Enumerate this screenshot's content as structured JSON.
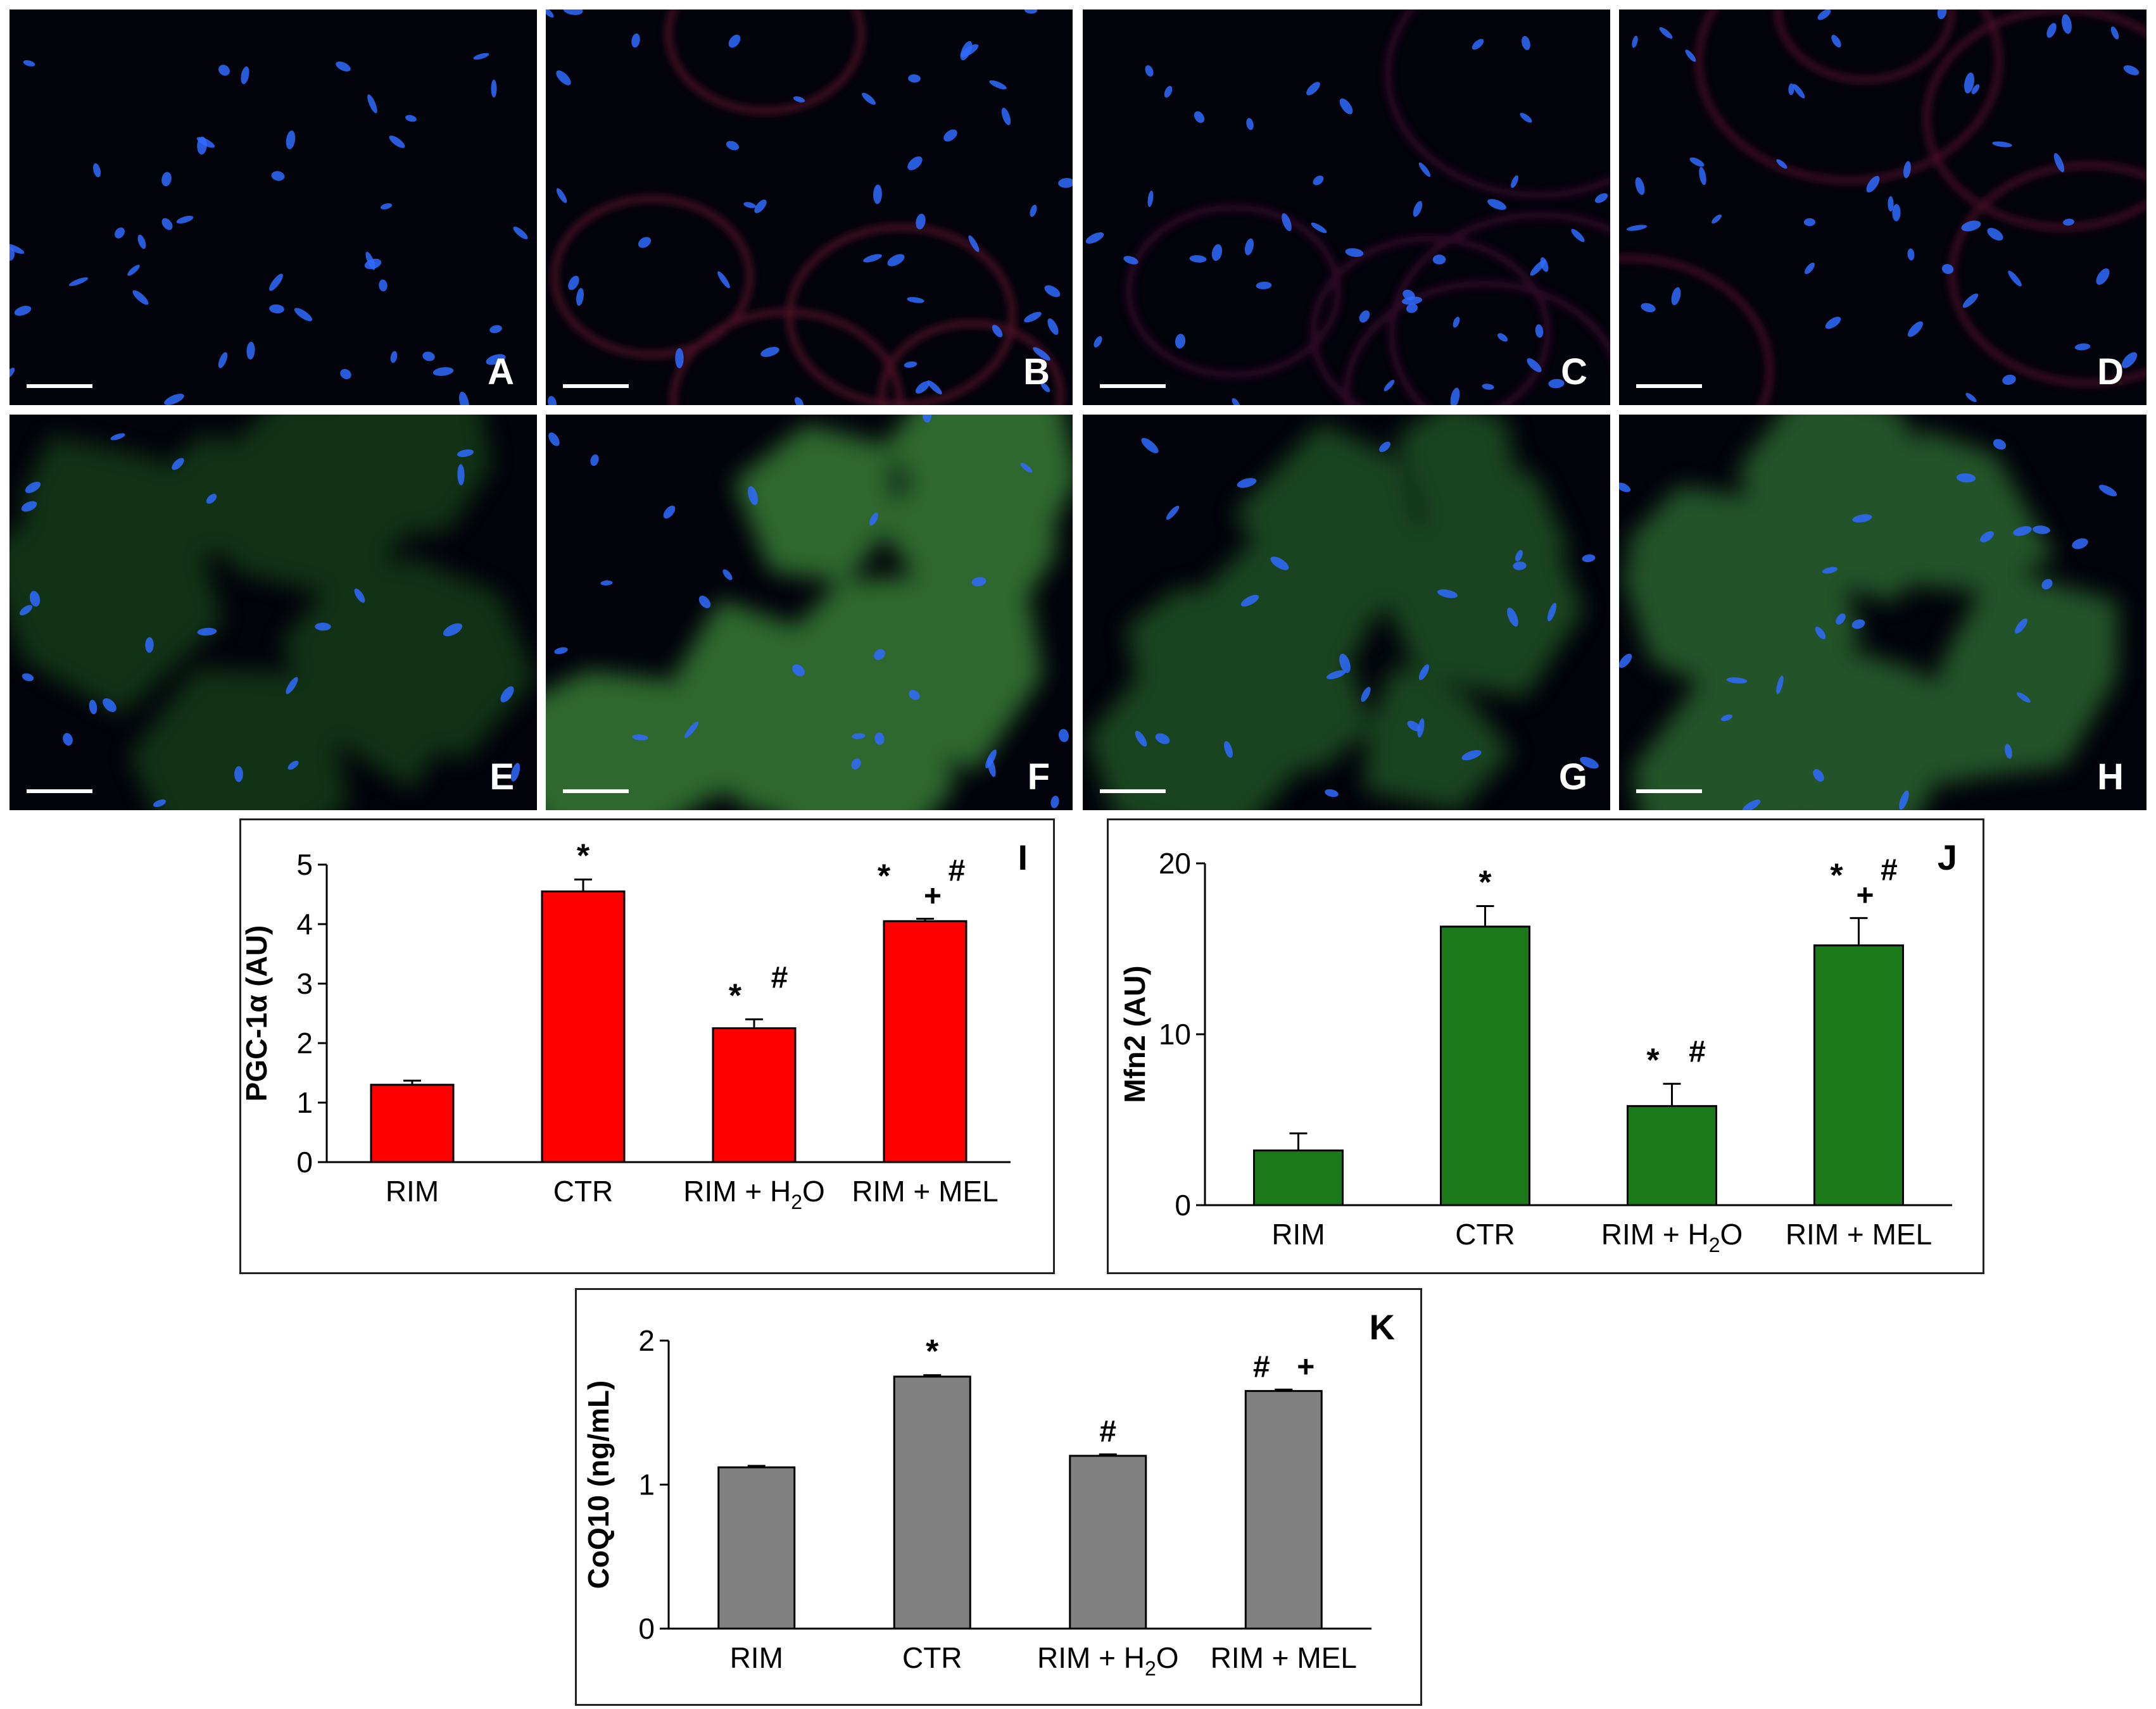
{
  "figure": {
    "micrograph_panels": [
      {
        "letter": "A",
        "stain": "dapi",
        "tint": "#00000000"
      },
      {
        "letter": "B",
        "stain": "dapi",
        "tint": "#8a1d3a"
      },
      {
        "letter": "C",
        "stain": "dapi",
        "tint": "#5a1040"
      },
      {
        "letter": "D",
        "stain": "dapi",
        "tint": "#7a1838"
      },
      {
        "letter": "E",
        "stain": "green",
        "tint": "#2f8a2a"
      },
      {
        "letter": "F",
        "stain": "green",
        "tint": "#3c8a3a"
      },
      {
        "letter": "G",
        "stain": "green",
        "tint": "#245a26"
      },
      {
        "letter": "H",
        "stain": "green",
        "tint": "#2f6e30"
      }
    ],
    "nucleus_color": "#2f6bff",
    "bar_colors": {
      "I": "#ff0000",
      "J": "#1a7a1a",
      "K": "#808080"
    }
  },
  "chart_data": [
    {
      "panel_letter": "I",
      "type": "bar",
      "categories": [
        "RIM",
        "CTR",
        "RIM + H2O",
        "RIM + MEL"
      ],
      "values": [
        1.3,
        4.55,
        2.25,
        4.05
      ],
      "errors": [
        0.07,
        0.2,
        0.15,
        0.04
      ],
      "ylabel": "PGC-1α (AU)",
      "ylim": [
        0,
        5
      ],
      "yticks": [
        "0",
        "1",
        "2",
        "3",
        "4",
        "5"
      ],
      "annotations": [
        {
          "cat": 1,
          "marks": [
            {
              "text": "*",
              "dy": 0
            }
          ]
        },
        {
          "cat": 2,
          "marks": [
            {
              "text": "*",
              "dx": -30,
              "dy": 0
            },
            {
              "text": "#",
              "dx": 40,
              "dy": -30
            }
          ]
        },
        {
          "cat": 3,
          "marks": [
            {
              "text": "*",
              "dx": -65,
              "dy": -30
            },
            {
              "text": "+",
              "dx": 12,
              "dy": 0
            },
            {
              "text": "#",
              "dx": 50,
              "dy": -40
            }
          ]
        }
      ]
    },
    {
      "panel_letter": "J",
      "type": "bar",
      "categories": [
        "RIM",
        "CTR",
        "RIM + H2O",
        "RIM + MEL"
      ],
      "values": [
        3.2,
        16.3,
        5.8,
        15.2
      ],
      "errors": [
        1.0,
        1.2,
        1.3,
        1.6
      ],
      "ylabel": "Mfn2 (AU)",
      "ylim": [
        0,
        20
      ],
      "yticks": [
        "0",
        "10",
        "20"
      ],
      "annotations": [
        {
          "cat": 1,
          "marks": [
            {
              "text": "*",
              "dy": 0
            }
          ]
        },
        {
          "cat": 2,
          "marks": [
            {
              "text": "*",
              "dx": -30,
              "dy": 0
            },
            {
              "text": "#",
              "dx": 40,
              "dy": -15
            }
          ]
        },
        {
          "cat": 3,
          "marks": [
            {
              "text": "*",
              "dx": -35,
              "dy": -30
            },
            {
              "text": "+",
              "dx": 10,
              "dy": 0
            },
            {
              "text": "#",
              "dx": 48,
              "dy": -40
            }
          ]
        }
      ]
    },
    {
      "panel_letter": "K",
      "type": "bar",
      "categories": [
        "RIM",
        "CTR",
        "RIM + H2O",
        "RIM + MEL"
      ],
      "values": [
        1.12,
        1.75,
        1.2,
        1.65
      ],
      "errors": [
        0.01,
        0.01,
        0.01,
        0.01
      ],
      "ylabel": "CoQ10 (ng/mL)",
      "ylim": [
        0,
        2
      ],
      "yticks": [
        "0",
        "1",
        "2"
      ],
      "annotations": [
        {
          "cat": 1,
          "marks": [
            {
              "text": "*",
              "dy": 0
            }
          ]
        },
        {
          "cat": 2,
          "marks": [
            {
              "text": "#",
              "dy": 0
            }
          ]
        },
        {
          "cat": 3,
          "marks": [
            {
              "text": "#",
              "dx": -35,
              "dy": 0
            },
            {
              "text": "+",
              "dx": 35,
              "dy": 0
            }
          ]
        }
      ]
    }
  ]
}
